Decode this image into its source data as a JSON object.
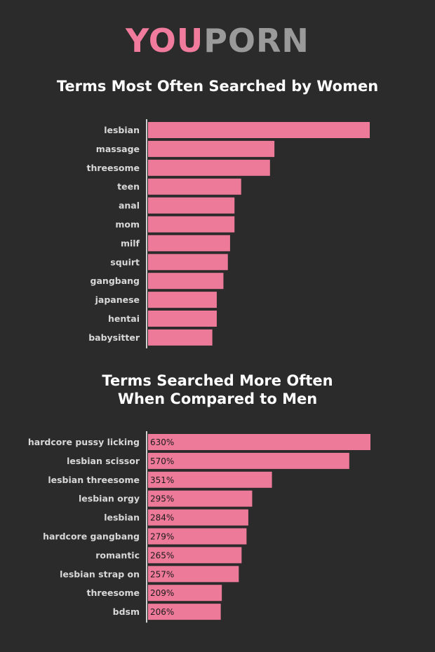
{
  "logo": {
    "part1": "YOU",
    "part2": "PORN"
  },
  "colors": {
    "background": "#2b2b2b",
    "bar": "#ee7a99",
    "logo_pink": "#f07b9c",
    "logo_gray": "#9a9a9a"
  },
  "chart_data": [
    {
      "type": "bar",
      "orientation": "horizontal",
      "title": "Terms Most Often Searched by Women",
      "categories": [
        "lesbian",
        "massage",
        "threesome",
        "teen",
        "anal",
        "mom",
        "milf",
        "squirt",
        "gangbang",
        "japanese",
        "hentai",
        "babysitter"
      ],
      "values": [
        100,
        57,
        55,
        42,
        39,
        39,
        37,
        36,
        34,
        31,
        31,
        29
      ],
      "xlim": [
        0,
        100
      ],
      "axis_labels_shown": false
    },
    {
      "type": "bar",
      "orientation": "horizontal",
      "title_lines": [
        "Terms Searched More Often",
        "When Compared to Men"
      ],
      "categories": [
        "hardcore pussy licking",
        "lesbian scissor",
        "lesbian threesome",
        "lesbian orgy",
        "lesbian",
        "hardcore gangbang",
        "romantic",
        "lesbian strap on",
        "threesome",
        "bdsm"
      ],
      "values": [
        630,
        570,
        351,
        295,
        284,
        279,
        265,
        257,
        209,
        206
      ],
      "value_labels": [
        "630%",
        "570%",
        "351%",
        "295%",
        "284%",
        "279%",
        "265%",
        "257%",
        "209%",
        "206%"
      ],
      "xlim": [
        0,
        630
      ]
    }
  ]
}
